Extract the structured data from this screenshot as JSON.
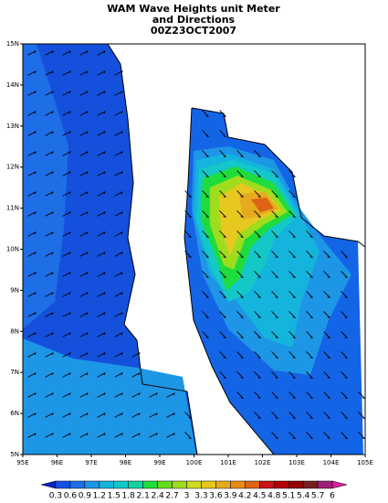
{
  "title": [
    "WAM Wave Heights unit Meter",
    "and Directions",
    "00Z23OCT2007"
  ],
  "lon_labels": [
    "95E",
    "96E",
    "97E",
    "98E",
    "99E",
    "100E",
    "101E",
    "102E",
    "103E",
    "104E",
    "105E"
  ],
  "lat_labels": [
    "5N",
    "6N",
    "7N",
    "8N",
    "9N",
    "10N",
    "11N",
    "12N",
    "13N",
    "14N",
    "15N"
  ],
  "colorbar": {
    "levels": [
      0.3,
      0.6,
      0.9,
      1.2,
      1.5,
      1.8,
      2.1,
      2.4,
      2.7,
      3,
      3.3,
      3.6,
      3.9,
      4.2,
      4.5,
      4.8,
      5.1,
      5.4,
      5.7,
      6
    ],
    "colors": [
      "#0a1ec8",
      "#1450e6",
      "#1e6ee6",
      "#1e96e6",
      "#14b4dc",
      "#14c8c8",
      "#14d2a0",
      "#1edc3c",
      "#64dc1e",
      "#a0dc1e",
      "#d2dc1e",
      "#e6c81e",
      "#e6aa1e",
      "#e68c14",
      "#dc6414",
      "#c81414",
      "#b40000",
      "#960000",
      "#781e1e",
      "#a01e78",
      "#dc1ea0"
    ]
  }
}
